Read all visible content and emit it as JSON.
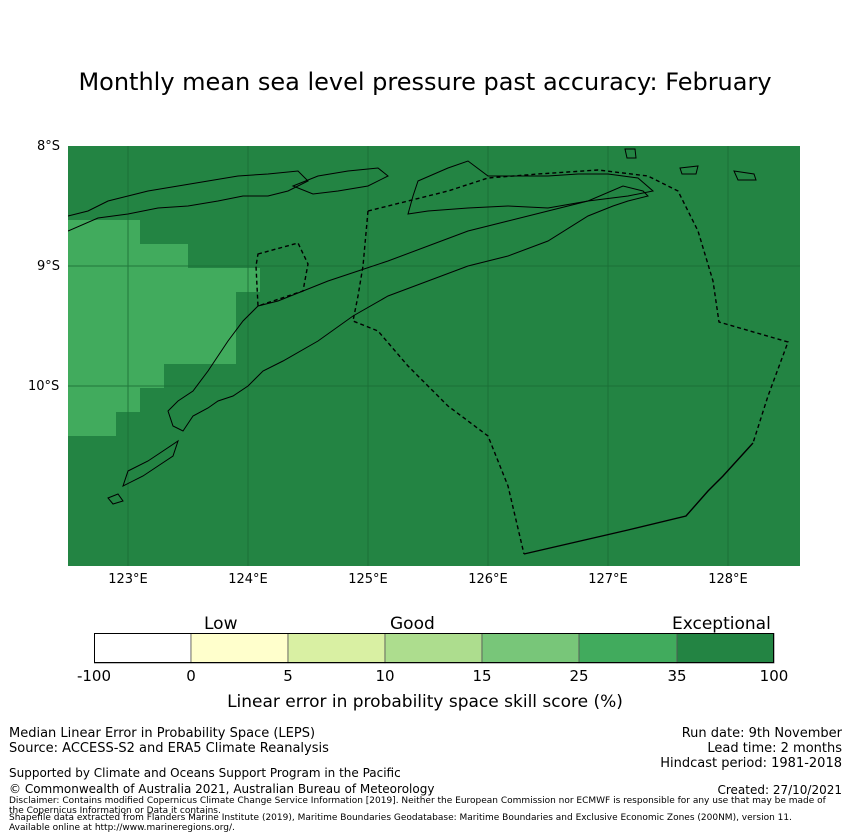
{
  "title": "Monthly mean sea level pressure past accuracy: February",
  "map": {
    "lat_labels": [
      "8°S",
      "9°S",
      "10°S"
    ],
    "lon_labels": [
      "123°E",
      "124°E",
      "125°E",
      "126°E",
      "127°E",
      "128°E"
    ],
    "colors": {
      "exceptional": "#238443",
      "very_good": "#41ab5d",
      "gridline": "#1a6b35",
      "coast": "#000000"
    }
  },
  "colorbar": {
    "categories": [
      "Low",
      "Good",
      "Exceptional"
    ],
    "ticks": [
      "-100",
      "0",
      "5",
      "10",
      "15",
      "25",
      "35",
      "100"
    ],
    "colors": [
      "#ffffff",
      "#ffffcc",
      "#d9f0a3",
      "#addd8e",
      "#78c679",
      "#41ab5d",
      "#238443"
    ],
    "xlabel": "Linear error in probability space skill score (%)"
  },
  "footer": {
    "method": "Median Linear Error in Probability Space (LEPS)",
    "source": "Source: ACCESS-S2 and ERA5 Climate Reanalysis",
    "run_date": "Run date: 9th November",
    "lead_time": "Lead time: 2 months",
    "hindcast": "Hindcast period: 1981-2018",
    "support": "Supported by Climate and Oceans Support Program in the Pacific",
    "copyright": "© Commonwealth of Australia 2021, Australian Bureau of Meteorology",
    "created": "Created: 27/10/2021",
    "disclaimer1": "Disclaimer: Contains modified Copernicus Climate Change Service Information [2019]. Neither the European Commission nor ECMWF is responsible for any use that may be made of",
    "disclaimer2": "the Copernicus Information or Data it contains.",
    "shapefile1": "Shapefile data extracted from Flanders Marine Institute (2019), Maritime Boundaries Geodatabase: Maritime Boundaries and Exclusive Economic Zones (200NM), version 11.",
    "shapefile2": "Available online at http://www.marineregions.org/."
  }
}
